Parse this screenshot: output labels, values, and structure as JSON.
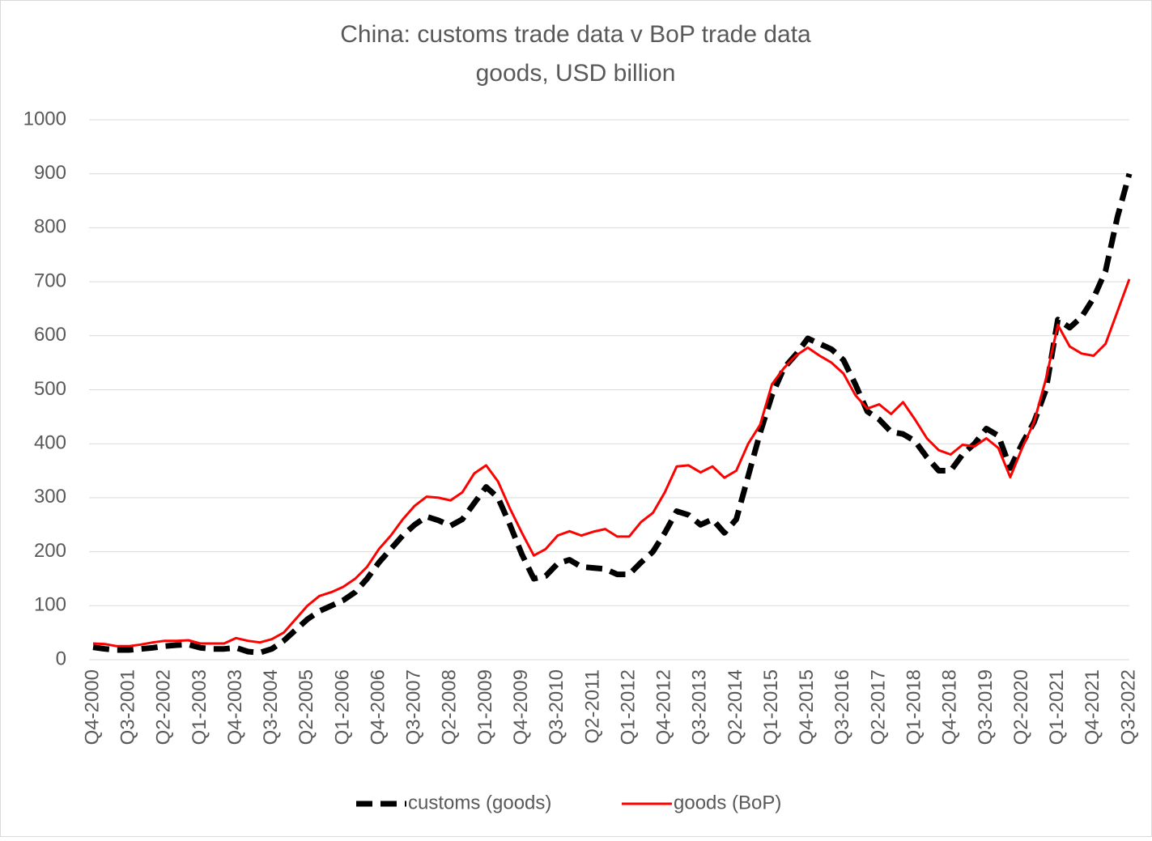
{
  "chart_data": {
    "type": "line",
    "title": "China: customs trade data v BoP trade data",
    "subtitle": "goods, USD billion",
    "categories": [
      "Q4-2000",
      null,
      null,
      "Q3-2001",
      null,
      null,
      "Q2-2002",
      null,
      null,
      "Q1-2003",
      null,
      null,
      "Q4-2003",
      null,
      null,
      "Q3-2004",
      null,
      null,
      "Q2-2005",
      null,
      null,
      "Q1-2006",
      null,
      null,
      "Q4-2006",
      null,
      null,
      "Q3-2007",
      null,
      null,
      "Q2-2008",
      null,
      null,
      "Q1-2009",
      null,
      null,
      "Q4-2009",
      null,
      null,
      "Q3-2010",
      null,
      null,
      "Q2-2011",
      null,
      null,
      "Q1-2012",
      null,
      null,
      "Q4-2012",
      null,
      null,
      "Q3-2013",
      null,
      null,
      "Q2-2014",
      null,
      null,
      "Q1-2015",
      null,
      null,
      "Q4-2015",
      null,
      null,
      "Q3-2016",
      null,
      null,
      "Q2-2017",
      null,
      null,
      "Q1-2018",
      null,
      null,
      "Q4-2018",
      null,
      null,
      "Q3-2019",
      null,
      null,
      "Q2-2020",
      null,
      null,
      "Q1-2021",
      null,
      null,
      "Q4-2021",
      null,
      null,
      "Q3-2022"
    ],
    "series": [
      {
        "name": "customs (goods)",
        "color": "#000000",
        "dashed": true,
        "values": [
          23,
          20,
          18,
          18,
          20,
          22,
          25,
          27,
          28,
          22,
          20,
          20,
          22,
          15,
          13,
          20,
          35,
          55,
          75,
          90,
          100,
          110,
          125,
          150,
          180,
          205,
          230,
          250,
          265,
          258,
          248,
          260,
          290,
          320,
          300,
          250,
          195,
          150,
          155,
          178,
          185,
          172,
          170,
          168,
          158,
          158,
          180,
          200,
          235,
          275,
          268,
          250,
          260,
          235,
          260,
          340,
          420,
          490,
          540,
          565,
          595,
          585,
          575,
          555,
          510,
          460,
          445,
          422,
          418,
          405,
          375,
          350,
          350,
          380,
          400,
          428,
          415,
          355,
          400,
          440,
          500,
          630,
          615,
          635,
          670,
          720,
          820,
          900
        ]
      },
      {
        "name": "goods (BoP)",
        "color": "#ff0000",
        "dashed": false,
        "values": [
          30,
          29,
          25,
          25,
          28,
          32,
          35,
          35,
          36,
          30,
          30,
          30,
          40,
          35,
          32,
          38,
          50,
          75,
          100,
          118,
          125,
          135,
          150,
          172,
          205,
          230,
          260,
          285,
          302,
          300,
          295,
          310,
          345,
          360,
          330,
          280,
          235,
          193,
          205,
          230,
          238,
          230,
          237,
          242,
          228,
          228,
          255,
          272,
          310,
          358,
          360,
          347,
          358,
          337,
          350,
          400,
          435,
          510,
          540,
          563,
          578,
          563,
          550,
          530,
          490,
          465,
          473,
          455,
          477,
          445,
          410,
          388,
          380,
          398,
          395,
          410,
          392,
          338,
          392,
          440,
          520,
          620,
          580,
          567,
          563,
          585,
          645,
          705
        ]
      }
    ],
    "ylim": [
      0,
      1000
    ],
    "yticks": [
      0,
      100,
      200,
      300,
      400,
      500,
      600,
      700,
      800,
      900,
      1000
    ],
    "grid": true,
    "legend": "bottom"
  }
}
